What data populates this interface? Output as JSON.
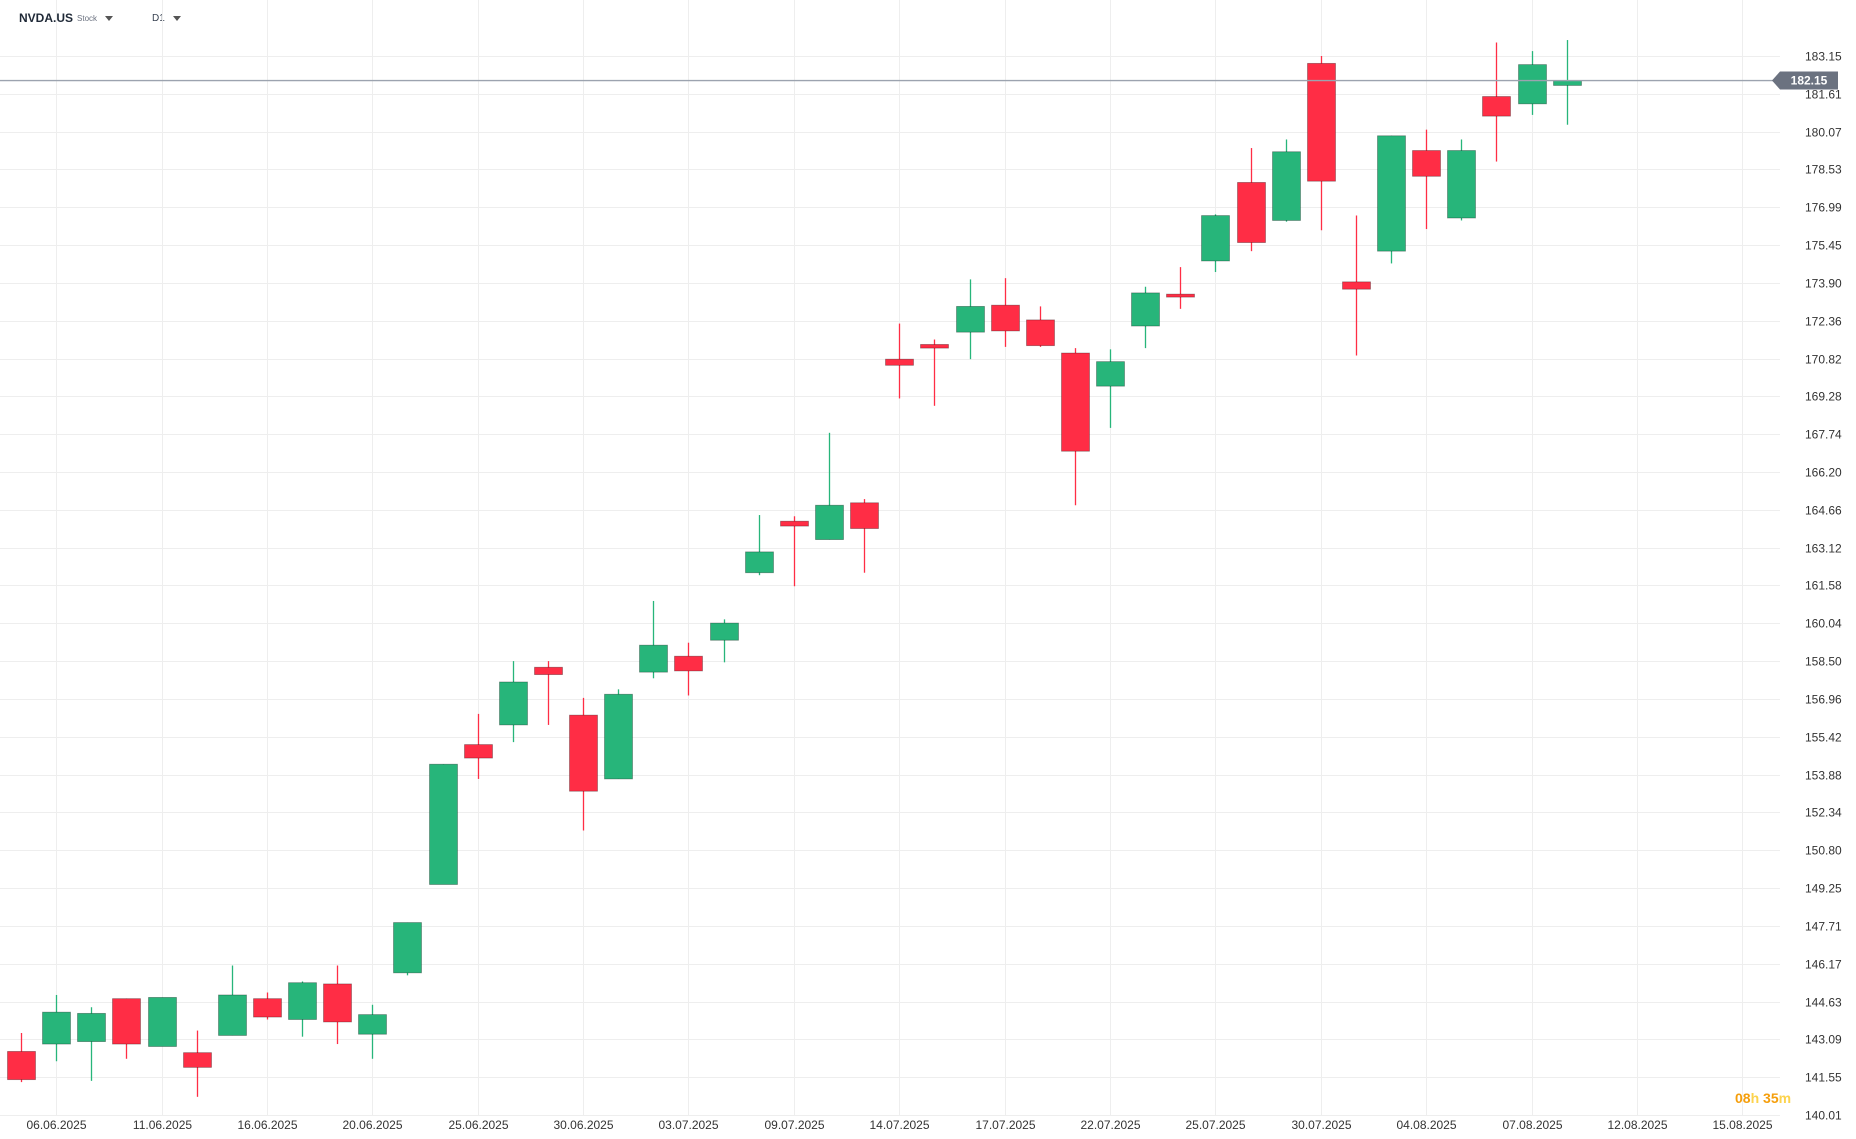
{
  "header": {
    "symbol": "NVDA.US",
    "instrument_type": "Stock",
    "timeframe": "D1"
  },
  "countdown": {
    "hours": "08",
    "hours_unit": "h",
    "minutes": "35",
    "minutes_unit": "m"
  },
  "colors": {
    "up": "#27b57a",
    "down": "#ff2d45",
    "grid": "#eeeeee",
    "price_line": "#9ca3af",
    "price_tag": "#6b7280",
    "axis_text": "#333333"
  },
  "chart_data": {
    "type": "candlestick",
    "current_price": "182.15",
    "current_price_value": 182.15,
    "ylim": [
      140.01,
      183.15
    ],
    "y_ticks": [
      "183.15",
      "181.61",
      "180.07",
      "178.53",
      "176.99",
      "175.45",
      "173.90",
      "172.36",
      "170.82",
      "169.28",
      "167.74",
      "166.20",
      "164.66",
      "163.12",
      "161.58",
      "160.04",
      "158.50",
      "156.96",
      "155.42",
      "153.88",
      "152.34",
      "150.80",
      "149.25",
      "147.71",
      "146.17",
      "144.63",
      "143.09",
      "141.55",
      "140.01"
    ],
    "x_ticks": [
      {
        "label": "06.06.2025",
        "index": 1
      },
      {
        "label": "11.06.2025",
        "index": 4
      },
      {
        "label": "16.06.2025",
        "index": 7
      },
      {
        "label": "20.06.2025",
        "index": 10
      },
      {
        "label": "25.06.2025",
        "index": 13
      },
      {
        "label": "30.06.2025",
        "index": 16
      },
      {
        "label": "03.07.2025",
        "index": 19
      },
      {
        "label": "09.07.2025",
        "index": 22
      },
      {
        "label": "14.07.2025",
        "index": 25
      },
      {
        "label": "17.07.2025",
        "index": 28
      },
      {
        "label": "22.07.2025",
        "index": 31
      },
      {
        "label": "25.07.2025",
        "index": 34
      },
      {
        "label": "30.07.2025",
        "index": 37
      },
      {
        "label": "04.08.2025",
        "index": 40
      },
      {
        "label": "07.08.2025",
        "index": 43
      },
      {
        "label": "12.08.2025",
        "index": 46
      },
      {
        "label": "15.08.2025",
        "index": 49
      }
    ],
    "candles": [
      {
        "o": 142.6,
        "h": 143.35,
        "l": 141.35,
        "c": 141.45
      },
      {
        "o": 142.9,
        "h": 144.9,
        "l": 142.2,
        "c": 144.2
      },
      {
        "o": 143.0,
        "h": 144.4,
        "l": 141.4,
        "c": 144.15
      },
      {
        "o": 144.75,
        "h": 144.75,
        "l": 142.3,
        "c": 142.9
      },
      {
        "o": 142.8,
        "h": 144.8,
        "l": 142.8,
        "c": 144.8
      },
      {
        "o": 142.55,
        "h": 143.45,
        "l": 140.75,
        "c": 141.95
      },
      {
        "o": 143.25,
        "h": 146.1,
        "l": 143.25,
        "c": 144.9
      },
      {
        "o": 144.75,
        "h": 145.0,
        "l": 143.9,
        "c": 144.0
      },
      {
        "o": 143.9,
        "h": 145.45,
        "l": 143.2,
        "c": 145.4
      },
      {
        "o": 145.35,
        "h": 146.1,
        "l": 142.9,
        "c": 143.8
      },
      {
        "o": 143.3,
        "h": 144.5,
        "l": 142.3,
        "c": 144.1
      },
      {
        "o": 145.8,
        "h": 147.85,
        "l": 145.7,
        "c": 147.85
      },
      {
        "o": 149.4,
        "h": 154.3,
        "l": 149.4,
        "c": 154.3
      },
      {
        "o": 155.1,
        "h": 156.35,
        "l": 153.7,
        "c": 154.55
      },
      {
        "o": 155.9,
        "h": 158.5,
        "l": 155.2,
        "c": 157.65
      },
      {
        "o": 158.25,
        "h": 158.5,
        "l": 155.9,
        "c": 157.95
      },
      {
        "o": 156.3,
        "h": 157.0,
        "l": 151.6,
        "c": 153.2
      },
      {
        "o": 153.7,
        "h": 157.35,
        "l": 153.7,
        "c": 157.15
      },
      {
        "o": 158.05,
        "h": 160.95,
        "l": 157.8,
        "c": 159.15
      },
      {
        "o": 158.7,
        "h": 159.25,
        "l": 157.1,
        "c": 158.1
      },
      {
        "o": 159.35,
        "h": 160.2,
        "l": 158.45,
        "c": 160.05
      },
      {
        "o": 162.1,
        "h": 164.45,
        "l": 162.0,
        "c": 162.95
      },
      {
        "o": 164.2,
        "h": 164.4,
        "l": 161.55,
        "c": 164.0
      },
      {
        "o": 163.45,
        "h": 167.8,
        "l": 163.45,
        "c": 164.85
      },
      {
        "o": 164.95,
        "h": 165.1,
        "l": 162.1,
        "c": 163.9
      },
      {
        "o": 170.8,
        "h": 172.25,
        "l": 169.2,
        "c": 170.55
      },
      {
        "o": 171.4,
        "h": 171.6,
        "l": 168.9,
        "c": 171.25
      },
      {
        "o": 171.9,
        "h": 174.05,
        "l": 170.8,
        "c": 172.95
      },
      {
        "o": 173.0,
        "h": 174.1,
        "l": 171.3,
        "c": 171.95
      },
      {
        "o": 172.4,
        "h": 172.95,
        "l": 171.3,
        "c": 171.35
      },
      {
        "o": 171.05,
        "h": 171.25,
        "l": 164.85,
        "c": 167.05
      },
      {
        "o": 169.7,
        "h": 171.2,
        "l": 168.0,
        "c": 170.7
      },
      {
        "o": 172.15,
        "h": 173.75,
        "l": 171.25,
        "c": 173.5
      },
      {
        "o": 173.45,
        "h": 174.55,
        "l": 172.85,
        "c": 173.4
      },
      {
        "o": 174.8,
        "h": 176.7,
        "l": 174.35,
        "c": 176.65
      },
      {
        "o": 178.0,
        "h": 179.4,
        "l": 175.2,
        "c": 175.55
      },
      {
        "o": 176.45,
        "h": 179.75,
        "l": 176.4,
        "c": 179.25
      },
      {
        "o": 182.85,
        "h": 183.15,
        "l": 176.05,
        "c": 178.05
      },
      {
        "o": 173.95,
        "h": 176.65,
        "l": 170.95,
        "c": 173.65
      },
      {
        "o": 175.2,
        "h": 179.9,
        "l": 174.7,
        "c": 179.9
      },
      {
        "o": 179.3,
        "h": 180.15,
        "l": 176.1,
        "c": 178.25
      },
      {
        "o": 176.55,
        "h": 179.75,
        "l": 176.45,
        "c": 179.3
      },
      {
        "o": 181.5,
        "h": 183.7,
        "l": 178.85,
        "c": 180.7
      },
      {
        "o": 181.2,
        "h": 183.35,
        "l": 180.75,
        "c": 182.8
      },
      {
        "o": 181.95,
        "h": 183.8,
        "l": 180.35,
        "c": 182.15
      }
    ]
  }
}
